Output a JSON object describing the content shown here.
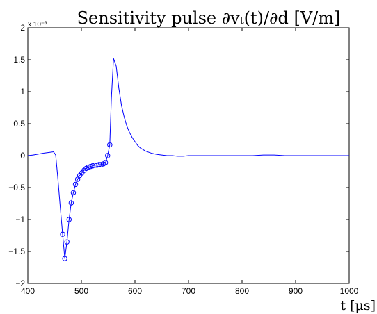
{
  "chart_data": {
    "type": "line",
    "title": "Sensitivity pulse ∂vₜ(t)/∂d [V/m]",
    "xlabel": "t [μs]",
    "ylabel": "",
    "y_exponent": "x 10⁻³",
    "xlim": [
      400,
      1000
    ],
    "ylim": [
      -2,
      2
    ],
    "xticks": [
      400,
      500,
      600,
      700,
      800,
      900,
      1000
    ],
    "yticks": [
      -2,
      -1.5,
      -1,
      -0.5,
      0,
      0.5,
      1,
      1.5,
      2
    ],
    "ytick_labels": [
      "-2",
      "-1.5",
      "-1",
      "-0.5",
      "0",
      "0.5",
      "1",
      "1.5",
      "2"
    ],
    "grid": false,
    "color": "#0000ff",
    "line": {
      "x": [
        400,
        410,
        420,
        430,
        440,
        448,
        452,
        456,
        460,
        465,
        469,
        473,
        477,
        481,
        485,
        489,
        493,
        497,
        501,
        505,
        509,
        513,
        517,
        521,
        525,
        529,
        533,
        537,
        541,
        545,
        549,
        553,
        556,
        560,
        565,
        570,
        575,
        580,
        585,
        590,
        595,
        600,
        605,
        610,
        620,
        630,
        640,
        650,
        660,
        670,
        680,
        690,
        700,
        710,
        720,
        730,
        740,
        750,
        760,
        770,
        780,
        790,
        800,
        820,
        840,
        860,
        880,
        900,
        920,
        940,
        960,
        980,
        1000
      ],
      "y": [
        0.0,
        0.01,
        0.025,
        0.04,
        0.05,
        0.06,
        0.01,
        -0.35,
        -0.75,
        -1.23,
        -1.61,
        -1.35,
        -1.0,
        -0.74,
        -0.58,
        -0.45,
        -0.37,
        -0.31,
        -0.27,
        -0.23,
        -0.2,
        -0.18,
        -0.17,
        -0.16,
        -0.15,
        -0.15,
        -0.14,
        -0.14,
        -0.13,
        -0.11,
        0.0,
        0.17,
        0.9,
        1.52,
        1.4,
        1.05,
        0.78,
        0.6,
        0.46,
        0.36,
        0.28,
        0.22,
        0.16,
        0.12,
        0.07,
        0.04,
        0.02,
        0.01,
        0.0,
        0.0,
        -0.01,
        -0.01,
        0.0,
        0.0,
        0.0,
        0.0,
        0.0,
        0.0,
        0.0,
        0.0,
        0.0,
        0.0,
        0.0,
        0.0,
        0.01,
        0.01,
        0.0,
        0.0,
        0.0,
        0.0,
        0.0,
        0.0,
        0.0
      ]
    },
    "markers": {
      "x": [
        465,
        469,
        473,
        477,
        481,
        485,
        489,
        493,
        497,
        501,
        505,
        509,
        513,
        517,
        521,
        525,
        529,
        533,
        537,
        541,
        545,
        549,
        553
      ],
      "y": [
        -1.23,
        -1.61,
        -1.35,
        -1.0,
        -0.74,
        -0.58,
        -0.45,
        -0.37,
        -0.31,
        -0.27,
        -0.23,
        -0.2,
        -0.18,
        -0.17,
        -0.16,
        -0.15,
        -0.15,
        -0.14,
        -0.14,
        -0.13,
        -0.11,
        0.0,
        0.17
      ]
    }
  }
}
